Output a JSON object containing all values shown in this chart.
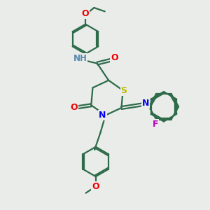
{
  "bg_color": "#eaece9",
  "bond_color": "#2d6b4a",
  "bond_width": 1.6,
  "atom_colors": {
    "N": "#0000ee",
    "O": "#ee0000",
    "S": "#bbbb00",
    "F": "#bb00bb",
    "NH": "#5588aa",
    "C": "#2d6b4a"
  },
  "figsize": [
    3.0,
    3.0
  ],
  "dpi": 100
}
